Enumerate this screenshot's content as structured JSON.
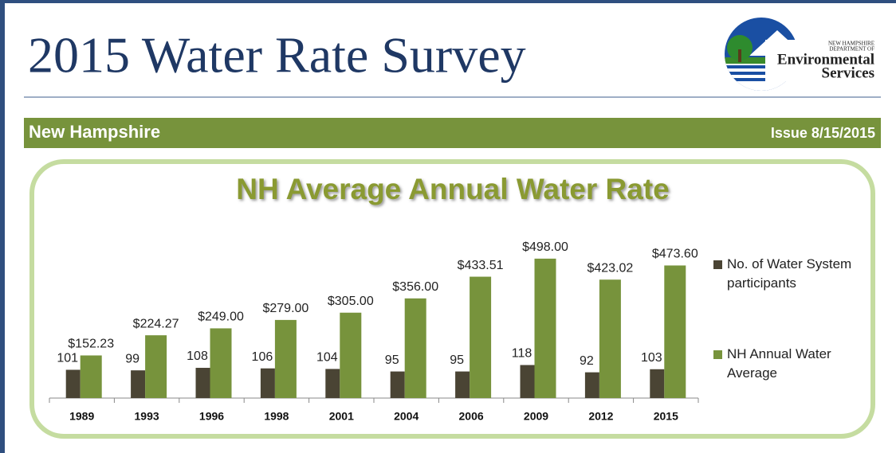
{
  "header": {
    "title": "2015 Water Rate Survey",
    "logo": [
      "NEW HAMPSHIRE",
      "DEPARTMENT OF",
      "Environmental",
      "Services"
    ]
  },
  "banner": {
    "left": "New Hampshire",
    "right": "Issue 8/15/2015"
  },
  "chart_data": {
    "type": "bar",
    "title": "NH Average Annual Water Rate",
    "categories": [
      "1989",
      "1993",
      "1996",
      "1998",
      "2001",
      "2004",
      "2006",
      "2009",
      "2012",
      "2015"
    ],
    "series": [
      {
        "name": "No. of Water System participants",
        "color": "#4a4434",
        "values": [
          101,
          99,
          108,
          106,
          104,
          95,
          95,
          118,
          92,
          103
        ]
      },
      {
        "name": "NH Annual Water Average",
        "color": "#77933c",
        "values": [
          152.23,
          224.27,
          249,
          279,
          305,
          356,
          433.51,
          498,
          423.02,
          473.6
        ],
        "value_labels": [
          "$152.23",
          "$224.27",
          "$249.00",
          "$279.00",
          "$305.00",
          "$356.00",
          "$433.51",
          "$498.00",
          "$423.02",
          "$473.60"
        ]
      }
    ],
    "ylim": [
      0,
      600
    ],
    "legend": "right"
  }
}
